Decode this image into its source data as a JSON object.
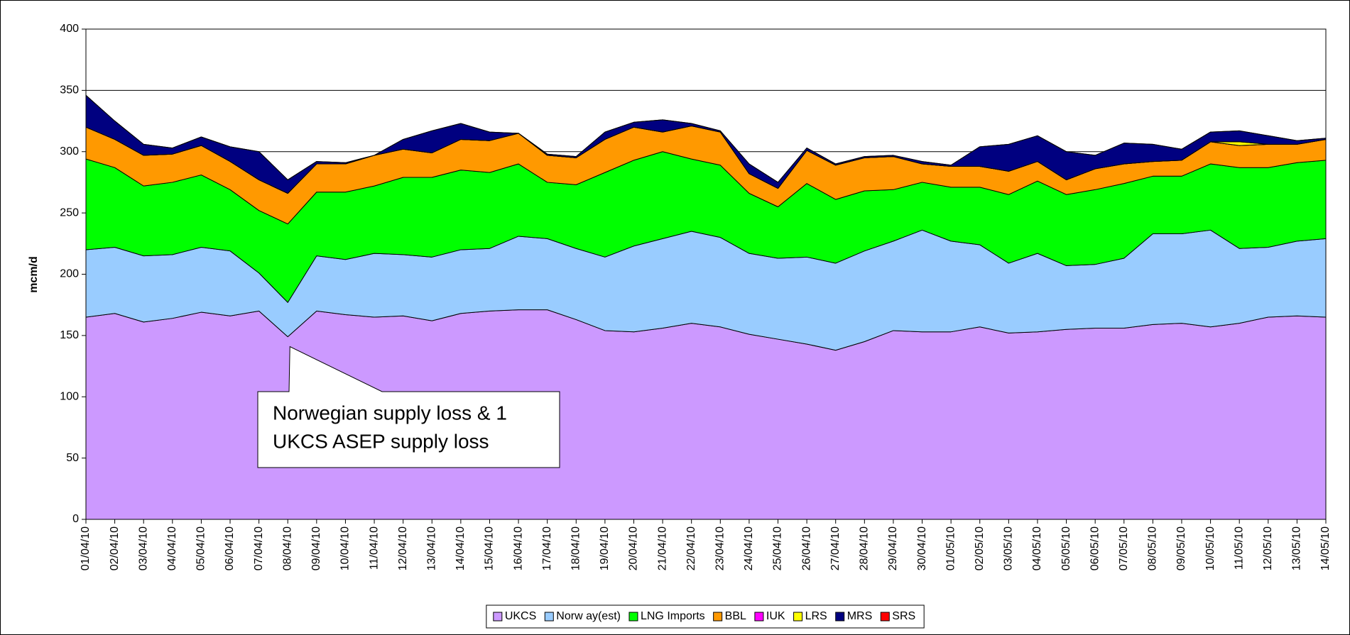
{
  "chart_data": {
    "type": "stacked_area",
    "ylabel": "mcm/d",
    "categories": [
      "01/04/10",
      "02/04/10",
      "03/04/10",
      "04/04/10",
      "05/04/10",
      "06/04/10",
      "07/04/10",
      "08/04/10",
      "09/04/10",
      "10/04/10",
      "11/04/10",
      "12/04/10",
      "13/04/10",
      "14/04/10",
      "15/04/10",
      "16/04/10",
      "17/04/10",
      "18/04/10",
      "19/04/10",
      "20/04/10",
      "21/04/10",
      "22/04/10",
      "23/04/10",
      "24/04/10",
      "25/04/10",
      "26/04/10",
      "27/04/10",
      "28/04/10",
      "29/04/10",
      "30/04/10",
      "01/05/10",
      "02/05/10",
      "03/05/10",
      "04/05/10",
      "05/05/10",
      "06/05/10",
      "07/05/10",
      "08/05/10",
      "09/05/10",
      "10/05/10",
      "11/05/10",
      "12/05/10",
      "13/05/10",
      "14/05/10"
    ],
    "series": [
      {
        "name": "UKCS",
        "color": "#cc99ff",
        "values": [
          165,
          168,
          161,
          164,
          169,
          166,
          170,
          149,
          170,
          167,
          165,
          166,
          162,
          168,
          170,
          171,
          171,
          163,
          154,
          153,
          156,
          160,
          157,
          151,
          147,
          143,
          138,
          145,
          154,
          153,
          153,
          157,
          152,
          153,
          155,
          156,
          156,
          159,
          160,
          157,
          160,
          165,
          166,
          165
        ]
      },
      {
        "name": "Norw ay(est)",
        "color": "#99ccff",
        "values": [
          55,
          54,
          54,
          52,
          53,
          53,
          31,
          28,
          45,
          45,
          52,
          50,
          52,
          52,
          51,
          60,
          58,
          58,
          60,
          70,
          73,
          75,
          73,
          66,
          66,
          71,
          71,
          74,
          73,
          83,
          74,
          67,
          57,
          64,
          52,
          52,
          57,
          74,
          73,
          79,
          61,
          57,
          61,
          64
        ]
      },
      {
        "name": "LNG Imports",
        "color": "#00ff00",
        "values": [
          74,
          65,
          57,
          59,
          59,
          50,
          51,
          64,
          52,
          55,
          55,
          63,
          65,
          65,
          62,
          59,
          46,
          52,
          69,
          70,
          71,
          59,
          59,
          49,
          42,
          60,
          52,
          49,
          42,
          39,
          44,
          47,
          56,
          59,
          58,
          61,
          61,
          47,
          47,
          54,
          66,
          65,
          64,
          64
        ]
      },
      {
        "name": "BBL",
        "color": "#ff9900",
        "values": [
          26,
          23,
          25,
          23,
          24,
          23,
          25,
          25,
          23,
          23,
          25,
          23,
          20,
          25,
          26,
          25,
          22,
          22,
          27,
          27,
          16,
          27,
          27,
          16,
          15,
          27,
          28,
          27,
          27,
          15,
          17,
          17,
          19,
          16,
          12,
          17,
          16,
          12,
          13,
          18,
          18,
          19,
          15,
          17
        ]
      },
      {
        "name": "IUK",
        "color": "#ff00ff",
        "values": [
          0,
          0,
          0,
          0,
          0,
          0,
          0,
          0,
          0,
          0,
          0,
          0,
          0,
          0,
          0,
          0,
          0,
          0,
          0,
          0,
          0,
          0,
          0,
          0,
          0,
          0,
          0,
          0,
          0,
          0,
          0,
          0,
          0,
          0,
          0,
          0,
          0,
          0,
          0,
          0,
          0,
          0,
          0,
          0
        ]
      },
      {
        "name": "LRS",
        "color": "#ffff00",
        "values": [
          0,
          0,
          0,
          0,
          0,
          0,
          0,
          0,
          0,
          0,
          0,
          0,
          0,
          0,
          0,
          0,
          0,
          0,
          0,
          0,
          0,
          0,
          0,
          0,
          0,
          0,
          0,
          0,
          0,
          0,
          0,
          0,
          0,
          0,
          0,
          0,
          0,
          0,
          0,
          0,
          3,
          0,
          0,
          0
        ]
      },
      {
        "name": "MRS",
        "color": "#000080",
        "values": [
          26,
          15,
          9,
          5,
          7,
          12,
          23,
          11,
          2,
          1,
          0,
          8,
          18,
          13,
          7,
          0,
          1,
          1,
          6,
          4,
          10,
          2,
          1,
          8,
          5,
          2,
          1,
          1,
          1,
          2,
          1,
          16,
          22,
          21,
          23,
          11,
          17,
          14,
          9,
          8,
          9,
          7,
          3,
          1
        ]
      },
      {
        "name": "SRS",
        "color": "#ff0000",
        "values": [
          0,
          0,
          0,
          0,
          0,
          0,
          0,
          0,
          0,
          0,
          0,
          0,
          0,
          0,
          0,
          0,
          0,
          0,
          0,
          0,
          0,
          0,
          0,
          0,
          0,
          0,
          0,
          0,
          0,
          0,
          0,
          0,
          0,
          0,
          0,
          0,
          0,
          0,
          0,
          0,
          0,
          0,
          0,
          0
        ]
      }
    ],
    "ylim": [
      0,
      400
    ],
    "yticks": [
      0,
      50,
      100,
      150,
      200,
      250,
      300,
      350,
      400
    ],
    "grid": true,
    "legend": "bottom",
    "annotation": {
      "lines": [
        "Norwegian supply loss & 1",
        "UKCS ASEP supply loss"
      ],
      "category": 7
    }
  }
}
